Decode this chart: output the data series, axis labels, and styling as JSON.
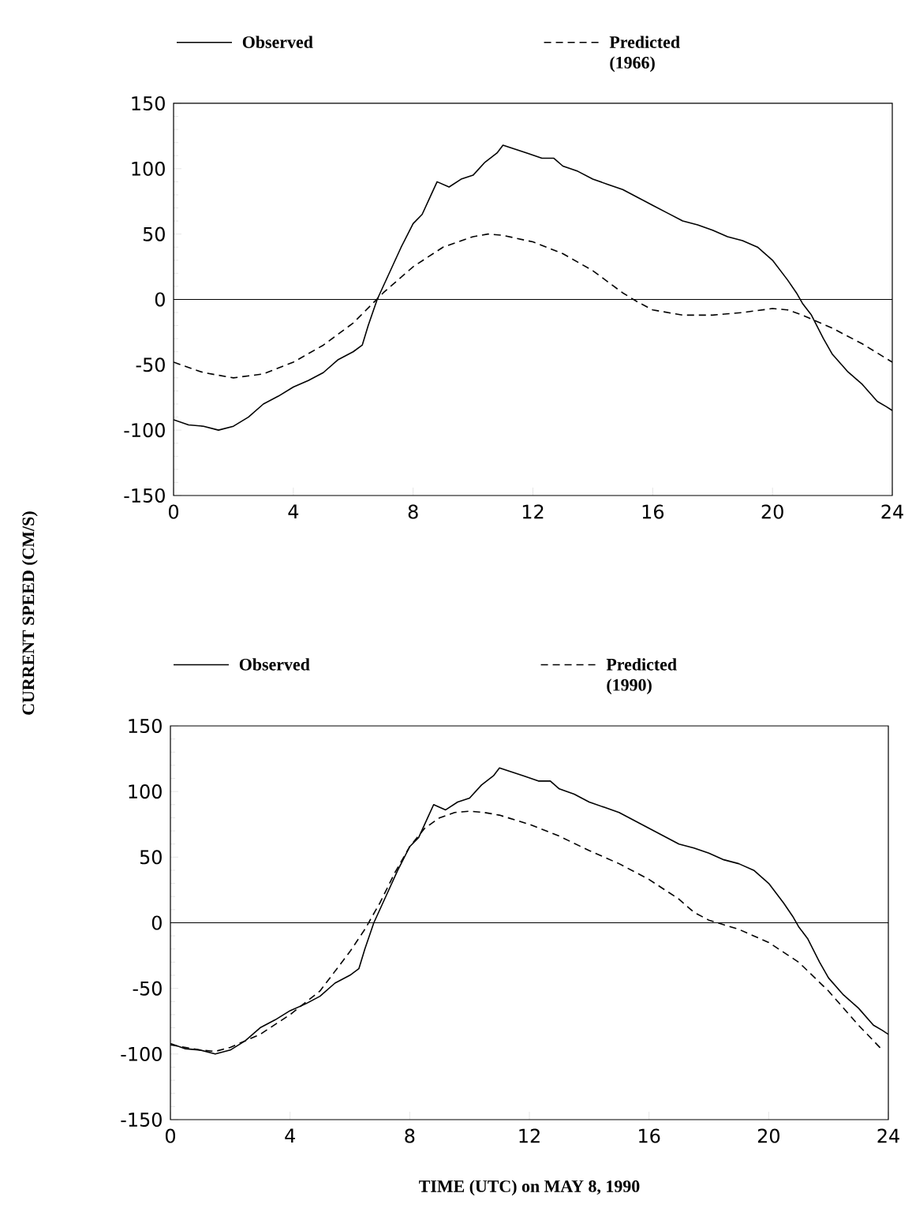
{
  "chart_data": [
    {
      "type": "line",
      "ylabel": "CURRENT SPEED (CM/S)",
      "xlim": [
        0,
        24
      ],
      "ylim": [
        -150,
        150
      ],
      "xticks": [
        0,
        4,
        8,
        12,
        16,
        20,
        24
      ],
      "yticks": [
        -150,
        -100,
        -50,
        0,
        50,
        100,
        150
      ],
      "legend": "top",
      "grid": false,
      "ref_lines": [
        {
          "axis": "y",
          "value": 0
        }
      ],
      "series": [
        {
          "name": "Observed",
          "color": "#000000",
          "line_style": "solid",
          "x": [
            0,
            0.5,
            1,
            1.5,
            2,
            2.5,
            3,
            3.5,
            4,
            4.5,
            5,
            5.5,
            6,
            6.3,
            6.5,
            6.8,
            7.2,
            7.6,
            8,
            8.3,
            8.6,
            8.8,
            9.2,
            9.6,
            10,
            10.4,
            10.8,
            11,
            11.4,
            11.8,
            12.3,
            12.7,
            13,
            13.5,
            14,
            14.5,
            15,
            15.5,
            16,
            16.5,
            17,
            17.5,
            18,
            18.5,
            19,
            19.5,
            20,
            20.5,
            20.8,
            21,
            21.3,
            21.7,
            22,
            22.5,
            23,
            23.5,
            23.8,
            24
          ],
          "values": [
            -92,
            -96,
            -97,
            -100,
            -97,
            -90,
            -80,
            -74,
            -67,
            -62,
            -56,
            -46,
            -40,
            -35,
            -20,
            0,
            20,
            40,
            58,
            65,
            80,
            90,
            86,
            92,
            95,
            105,
            112,
            118,
            115,
            112,
            108,
            108,
            102,
            98,
            92,
            88,
            84,
            78,
            72,
            66,
            60,
            57,
            53,
            48,
            45,
            40,
            30,
            15,
            5,
            -3,
            -12,
            -30,
            -42,
            -55,
            -65,
            -78,
            -82,
            -85
          ]
        },
        {
          "name": "Predicted (1966)",
          "color": "#000000",
          "line_style": "dashed",
          "x": [
            0,
            1,
            2,
            3,
            4,
            5,
            6,
            7,
            8,
            9,
            10,
            10.5,
            11,
            12,
            13,
            14,
            15,
            15.5,
            16,
            17,
            18,
            19,
            20,
            20.5,
            21,
            22,
            23,
            24
          ],
          "values": [
            -48,
            -56,
            -60,
            -57,
            -48,
            -35,
            -18,
            5,
            25,
            40,
            48,
            50,
            49,
            44,
            35,
            22,
            5,
            -2,
            -8,
            -12,
            -12,
            -10,
            -7,
            -8,
            -12,
            -22,
            -34,
            -48
          ]
        }
      ]
    },
    {
      "type": "line",
      "xlabel": "TIME (UTC) on MAY 8, 1990",
      "xlim": [
        0,
        24
      ],
      "ylim": [
        -150,
        150
      ],
      "xticks": [
        0,
        4,
        8,
        12,
        16,
        20,
        24
      ],
      "yticks": [
        -150,
        -100,
        -50,
        0,
        50,
        100,
        150
      ],
      "legend": "top",
      "grid": false,
      "ref_lines": [
        {
          "axis": "y",
          "value": 0
        }
      ],
      "series": [
        {
          "name": "Observed",
          "color": "#000000",
          "line_style": "solid",
          "x": [
            0,
            0.5,
            1,
            1.5,
            2,
            2.5,
            3,
            3.5,
            4,
            4.5,
            5,
            5.5,
            6,
            6.3,
            6.5,
            6.8,
            7.2,
            7.6,
            8,
            8.3,
            8.6,
            8.8,
            9.2,
            9.6,
            10,
            10.4,
            10.8,
            11,
            11.4,
            11.8,
            12.3,
            12.7,
            13,
            13.5,
            14,
            14.5,
            15,
            15.5,
            16,
            16.5,
            17,
            17.5,
            18,
            18.5,
            19,
            19.5,
            20,
            20.5,
            20.8,
            21,
            21.3,
            21.7,
            22,
            22.5,
            23,
            23.5,
            23.8,
            24
          ],
          "values": [
            -92,
            -96,
            -97,
            -100,
            -97,
            -90,
            -80,
            -74,
            -67,
            -62,
            -56,
            -46,
            -40,
            -35,
            -20,
            0,
            20,
            40,
            58,
            65,
            80,
            90,
            86,
            92,
            95,
            105,
            112,
            118,
            115,
            112,
            108,
            108,
            102,
            98,
            92,
            88,
            84,
            78,
            72,
            66,
            60,
            57,
            53,
            48,
            45,
            40,
            30,
            15,
            5,
            -3,
            -12,
            -30,
            -42,
            -55,
            -65,
            -78,
            -82,
            -85
          ]
        },
        {
          "name": "Predicted (1990)",
          "color": "#000000",
          "line_style": "dashed",
          "x": [
            0,
            1,
            1.5,
            2,
            3,
            4,
            5,
            6,
            6.5,
            7,
            7.5,
            8,
            8.5,
            9,
            9.5,
            10,
            10.5,
            11,
            12,
            13,
            14,
            15,
            16,
            17,
            17.5,
            18,
            19,
            20,
            21,
            22,
            23,
            23.8
          ],
          "values": [
            -93,
            -97,
            -98,
            -95,
            -85,
            -70,
            -52,
            -22,
            -5,
            15,
            38,
            58,
            72,
            80,
            84,
            85,
            84,
            82,
            75,
            66,
            55,
            45,
            33,
            18,
            8,
            2,
            -5,
            -15,
            -30,
            -52,
            -78,
            -97
          ]
        }
      ]
    }
  ]
}
